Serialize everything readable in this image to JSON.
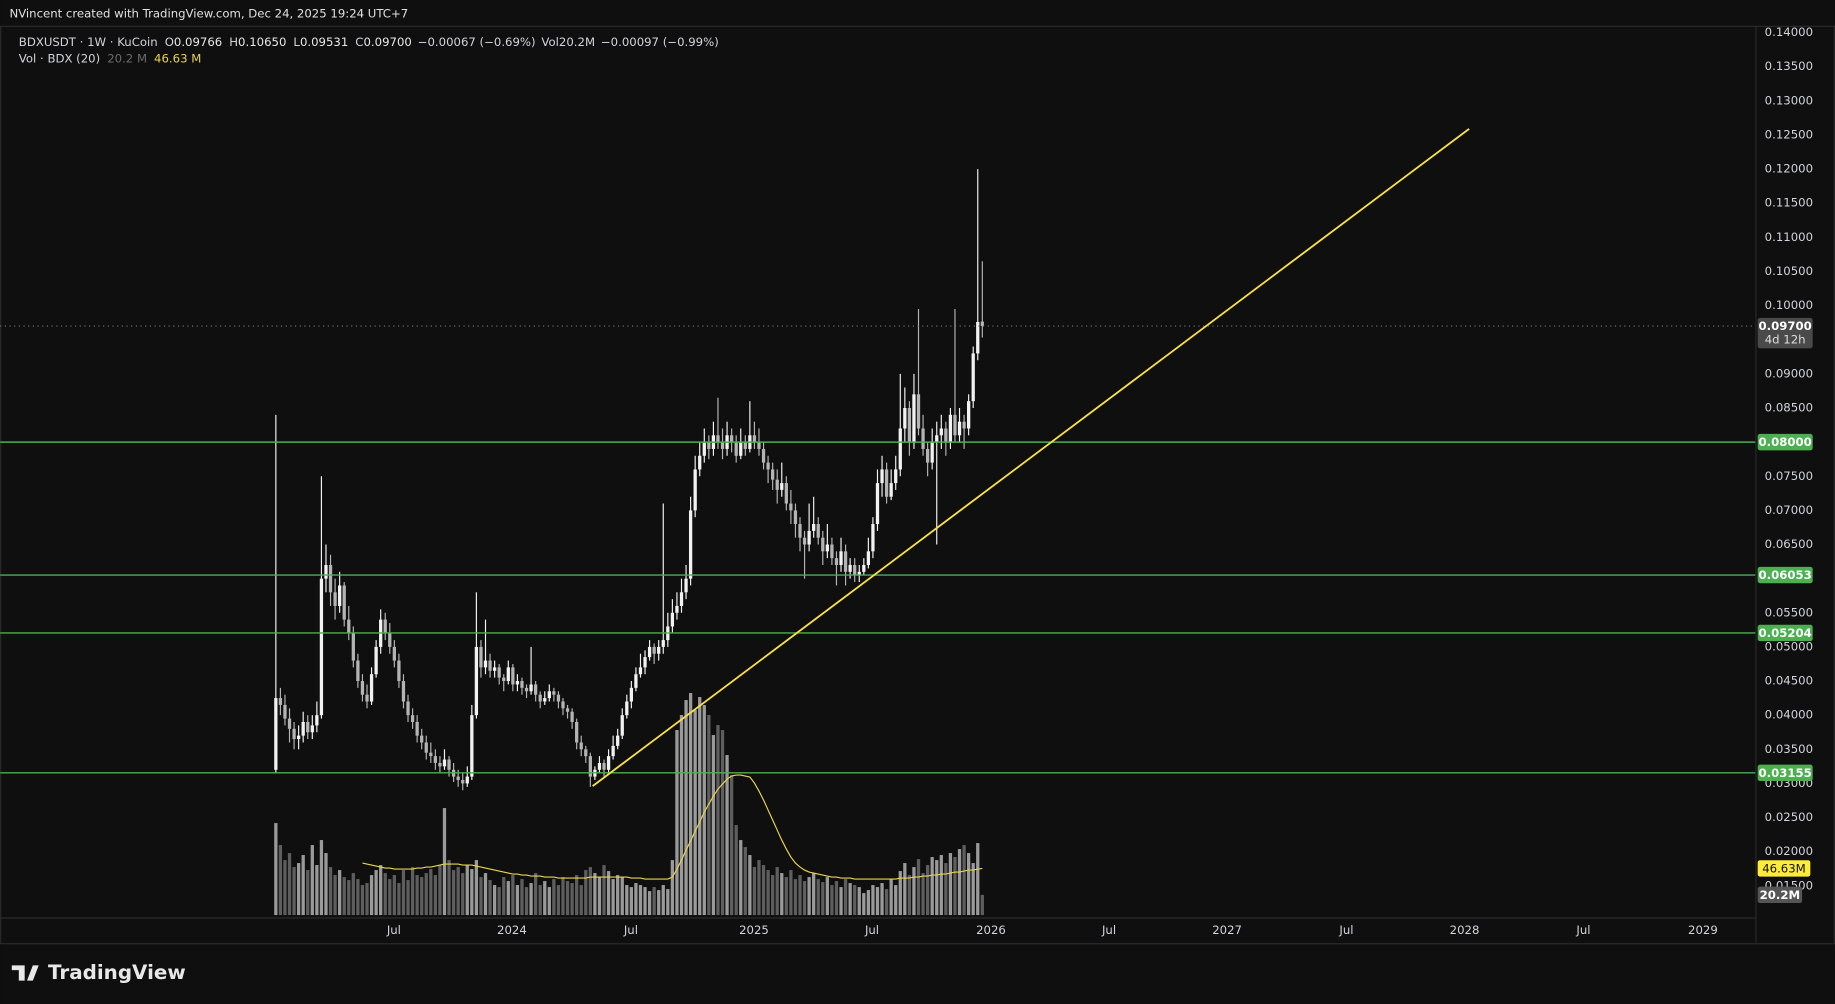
{
  "header": {
    "credit": "NVincent created with TradingView.com, Dec 24, 2025 19:24 UTC+7"
  },
  "footer": {
    "brand": "TradingView"
  },
  "chart_data": {
    "type": "candlestick",
    "legend": {
      "symbol": "BDXUSDT · 1W · KuCoin",
      "items": [
        {
          "k": "O",
          "v": "0.09766"
        },
        {
          "k": "H",
          "v": "0.10650"
        },
        {
          "k": "L",
          "v": "0.09531"
        },
        {
          "k": "C",
          "v": "0.09700"
        }
      ],
      "change": "−0.00067 (−0.69%)",
      "vol_k": "Vol",
      "vol_v": "20.2M",
      "change2": "−0.00097 (−0.99%)",
      "vol_name": "Vol · BDX (20)",
      "vol_value": "20.2 M",
      "vol_ma_value": "46.63 M"
    },
    "up_color": "#f2f2f2",
    "down_color": "#b4b4b4",
    "vol_up_color": "#9a9a9a",
    "vol_down_color": "#5e5e5e",
    "ma_color": "#e8d44d",
    "level_color": "#4caf50",
    "trend_color": "#f5e04a",
    "grid": false,
    "xlim": [
      -60.5,
      324.6
    ],
    "ylim": [
      0.0066,
      0.141
    ],
    "xticks": [
      {
        "value": 25.9,
        "label": "Jul"
      },
      {
        "value": 51.8,
        "label": "2024"
      },
      {
        "value": 77.9,
        "label": "Jul"
      },
      {
        "value": 104.9,
        "label": "2025"
      },
      {
        "value": 130.8,
        "label": "Jul"
      },
      {
        "value": 156.9,
        "label": "2026"
      },
      {
        "value": 182.8,
        "label": "Jul"
      },
      {
        "value": 208.7,
        "label": "2027"
      },
      {
        "value": 234.9,
        "label": "Jul"
      },
      {
        "value": 260.8,
        "label": "2028"
      },
      {
        "value": 286.9,
        "label": "Jul"
      },
      {
        "value": 313.1,
        "label": "2029"
      }
    ],
    "yticks": [
      {
        "value": 0.14,
        "label": "0.14000"
      },
      {
        "value": 0.135,
        "label": "0.13500"
      },
      {
        "value": 0.13,
        "label": "0.13000"
      },
      {
        "value": 0.125,
        "label": "0.12500"
      },
      {
        "value": 0.12,
        "label": "0.12000"
      },
      {
        "value": 0.115,
        "label": "0.11500"
      },
      {
        "value": 0.11,
        "label": "0.11000"
      },
      {
        "value": 0.105,
        "label": "0.10500"
      },
      {
        "value": 0.1,
        "label": "0.10000"
      },
      {
        "value": 0.095,
        "label": "0.09500"
      },
      {
        "value": 0.09,
        "label": "0.09000"
      },
      {
        "value": 0.085,
        "label": "0.08500"
      },
      {
        "value": 0.08,
        "label": "0.08000"
      },
      {
        "value": 0.075,
        "label": "0.07500"
      },
      {
        "value": 0.07,
        "label": "0.07000"
      },
      {
        "value": 0.065,
        "label": "0.06500"
      },
      {
        "value": 0.06,
        "label": "0.06000"
      },
      {
        "value": 0.055,
        "label": "0.05500"
      },
      {
        "value": 0.05,
        "label": "0.05000"
      },
      {
        "value": 0.045,
        "label": "0.04500"
      },
      {
        "value": 0.04,
        "label": "0.04000"
      },
      {
        "value": 0.035,
        "label": "0.03500"
      },
      {
        "value": 0.03,
        "label": "0.03000"
      },
      {
        "value": 0.025,
        "label": "0.02500"
      },
      {
        "value": 0.02,
        "label": "0.02000"
      },
      {
        "value": 0.015,
        "label": "0.01500"
      }
    ],
    "levels": [
      {
        "value": 0.08,
        "label": "0.08000"
      },
      {
        "value": 0.06053,
        "label": "0.06053"
      },
      {
        "value": 0.05204,
        "label": "0.05204"
      },
      {
        "value": 0.03155,
        "label": "0.03155"
      }
    ],
    "last_price": {
      "value": 0.097,
      "label": "0.09700",
      "countdown": "4d 12h"
    },
    "vol_labels": {
      "ma": "46.63M",
      "vol": "20.2M"
    },
    "trendline": {
      "x": [
        69.5,
        261.8
      ],
      "y": [
        0.0296,
        0.1259
      ]
    },
    "ohlc": [
      [
        0.032,
        0.084,
        0.0315,
        0.0425
      ],
      [
        0.0425,
        0.044,
        0.04,
        0.0415
      ],
      [
        0.0415,
        0.043,
        0.0385,
        0.0395
      ],
      [
        0.0395,
        0.041,
        0.036,
        0.038
      ],
      [
        0.038,
        0.039,
        0.035,
        0.0365
      ],
      [
        0.0365,
        0.0385,
        0.035,
        0.037
      ],
      [
        0.037,
        0.0405,
        0.036,
        0.039
      ],
      [
        0.039,
        0.04,
        0.0365,
        0.0375
      ],
      [
        0.0375,
        0.04,
        0.0365,
        0.0385
      ],
      [
        0.0385,
        0.042,
        0.0375,
        0.04
      ],
      [
        0.04,
        0.075,
        0.0395,
        0.06
      ],
      [
        0.06,
        0.065,
        0.058,
        0.062
      ],
      [
        0.062,
        0.0635,
        0.056,
        0.058
      ],
      [
        0.058,
        0.06,
        0.054,
        0.056
      ],
      [
        0.056,
        0.061,
        0.055,
        0.059
      ],
      [
        0.059,
        0.0595,
        0.053,
        0.054
      ],
      [
        0.054,
        0.056,
        0.051,
        0.052
      ],
      [
        0.052,
        0.053,
        0.047,
        0.048
      ],
      [
        0.048,
        0.049,
        0.044,
        0.045
      ],
      [
        0.045,
        0.046,
        0.042,
        0.043
      ],
      [
        0.043,
        0.0445,
        0.041,
        0.042
      ],
      [
        0.042,
        0.047,
        0.0415,
        0.046
      ],
      [
        0.046,
        0.051,
        0.0455,
        0.05
      ],
      [
        0.05,
        0.0555,
        0.049,
        0.054
      ],
      [
        0.054,
        0.055,
        0.051,
        0.052
      ],
      [
        0.052,
        0.0535,
        0.049,
        0.05
      ],
      [
        0.05,
        0.051,
        0.047,
        0.048
      ],
      [
        0.048,
        0.049,
        0.044,
        0.045
      ],
      [
        0.045,
        0.046,
        0.041,
        0.042
      ],
      [
        0.042,
        0.043,
        0.039,
        0.04
      ],
      [
        0.04,
        0.041,
        0.038,
        0.039
      ],
      [
        0.039,
        0.04,
        0.036,
        0.037
      ],
      [
        0.037,
        0.038,
        0.035,
        0.036
      ],
      [
        0.036,
        0.037,
        0.0335,
        0.0345
      ],
      [
        0.0345,
        0.036,
        0.033,
        0.034
      ],
      [
        0.034,
        0.035,
        0.032,
        0.033
      ],
      [
        0.033,
        0.034,
        0.0315,
        0.0325
      ],
      [
        0.0325,
        0.035,
        0.032,
        0.0335
      ],
      [
        0.0335,
        0.034,
        0.031,
        0.032
      ],
      [
        0.032,
        0.033,
        0.0302,
        0.031
      ],
      [
        0.031,
        0.032,
        0.0295,
        0.0305
      ],
      [
        0.0305,
        0.0315,
        0.029,
        0.03
      ],
      [
        0.03,
        0.0325,
        0.0295,
        0.031
      ],
      [
        0.031,
        0.0415,
        0.0305,
        0.04
      ],
      [
        0.04,
        0.058,
        0.0395,
        0.05
      ],
      [
        0.05,
        0.051,
        0.0455,
        0.047
      ],
      [
        0.047,
        0.054,
        0.046,
        0.048
      ],
      [
        0.048,
        0.049,
        0.0455,
        0.0465
      ],
      [
        0.0465,
        0.048,
        0.0455,
        0.047
      ],
      [
        0.047,
        0.0475,
        0.0445,
        0.0455
      ],
      [
        0.0455,
        0.046,
        0.0435,
        0.045
      ],
      [
        0.045,
        0.048,
        0.0445,
        0.047
      ],
      [
        0.047,
        0.0475,
        0.0435,
        0.0445
      ],
      [
        0.0445,
        0.046,
        0.0435,
        0.045
      ],
      [
        0.045,
        0.0455,
        0.043,
        0.044
      ],
      [
        0.044,
        0.0445,
        0.0425,
        0.0435
      ],
      [
        0.0435,
        0.05,
        0.043,
        0.0445
      ],
      [
        0.0445,
        0.045,
        0.042,
        0.043
      ],
      [
        0.043,
        0.0435,
        0.041,
        0.042
      ],
      [
        0.042,
        0.0435,
        0.0415,
        0.0425
      ],
      [
        0.0425,
        0.0445,
        0.042,
        0.0435
      ],
      [
        0.0435,
        0.044,
        0.042,
        0.043
      ],
      [
        0.043,
        0.0435,
        0.041,
        0.042
      ],
      [
        0.042,
        0.0425,
        0.04,
        0.041
      ],
      [
        0.041,
        0.0415,
        0.0395,
        0.0405
      ],
      [
        0.0405,
        0.041,
        0.038,
        0.039
      ],
      [
        0.039,
        0.0395,
        0.035,
        0.036
      ],
      [
        0.036,
        0.037,
        0.034,
        0.035
      ],
      [
        0.035,
        0.0355,
        0.033,
        0.034
      ],
      [
        0.034,
        0.0345,
        0.0295,
        0.031
      ],
      [
        0.031,
        0.0325,
        0.0305,
        0.032
      ],
      [
        0.032,
        0.034,
        0.0315,
        0.033
      ],
      [
        0.033,
        0.0335,
        0.031,
        0.032
      ],
      [
        0.032,
        0.035,
        0.0315,
        0.034
      ],
      [
        0.034,
        0.037,
        0.0335,
        0.0355
      ],
      [
        0.0355,
        0.038,
        0.035,
        0.037
      ],
      [
        0.037,
        0.041,
        0.0365,
        0.04
      ],
      [
        0.04,
        0.043,
        0.0395,
        0.042
      ],
      [
        0.042,
        0.045,
        0.041,
        0.044
      ],
      [
        0.044,
        0.047,
        0.0435,
        0.046
      ],
      [
        0.046,
        0.049,
        0.0455,
        0.047
      ],
      [
        0.047,
        0.0495,
        0.046,
        0.0485
      ],
      [
        0.0485,
        0.051,
        0.048,
        0.05
      ],
      [
        0.05,
        0.0505,
        0.0475,
        0.049
      ],
      [
        0.049,
        0.051,
        0.048,
        0.05
      ],
      [
        0.05,
        0.071,
        0.049,
        0.051
      ],
      [
        0.051,
        0.055,
        0.05,
        0.053
      ],
      [
        0.053,
        0.057,
        0.052,
        0.055
      ],
      [
        0.055,
        0.058,
        0.054,
        0.056
      ],
      [
        0.056,
        0.06,
        0.055,
        0.058
      ],
      [
        0.058,
        0.062,
        0.057,
        0.06
      ],
      [
        0.06,
        0.072,
        0.059,
        0.07
      ],
      [
        0.07,
        0.078,
        0.069,
        0.076
      ],
      [
        0.076,
        0.08,
        0.075,
        0.078
      ],
      [
        0.078,
        0.082,
        0.077,
        0.08
      ],
      [
        0.08,
        0.081,
        0.0775,
        0.079
      ],
      [
        0.079,
        0.083,
        0.078,
        0.081
      ],
      [
        0.081,
        0.0865,
        0.079,
        0.08
      ],
      [
        0.08,
        0.082,
        0.0775,
        0.079
      ],
      [
        0.079,
        0.083,
        0.078,
        0.081
      ],
      [
        0.081,
        0.082,
        0.0785,
        0.08
      ],
      [
        0.08,
        0.081,
        0.077,
        0.078
      ],
      [
        0.078,
        0.082,
        0.0775,
        0.08
      ],
      [
        0.08,
        0.081,
        0.078,
        0.079
      ],
      [
        0.079,
        0.086,
        0.0785,
        0.081
      ],
      [
        0.081,
        0.083,
        0.079,
        0.08
      ],
      [
        0.08,
        0.082,
        0.078,
        0.079
      ],
      [
        0.079,
        0.08,
        0.076,
        0.077
      ],
      [
        0.077,
        0.078,
        0.074,
        0.076
      ],
      [
        0.076,
        0.077,
        0.073,
        0.0745
      ],
      [
        0.0745,
        0.076,
        0.071,
        0.073
      ],
      [
        0.073,
        0.077,
        0.072,
        0.074
      ],
      [
        0.074,
        0.075,
        0.07,
        0.071
      ],
      [
        0.071,
        0.073,
        0.068,
        0.07
      ],
      [
        0.07,
        0.071,
        0.066,
        0.068
      ],
      [
        0.068,
        0.069,
        0.064,
        0.066
      ],
      [
        0.066,
        0.067,
        0.06,
        0.065
      ],
      [
        0.065,
        0.071,
        0.064,
        0.067
      ],
      [
        0.067,
        0.072,
        0.066,
        0.068
      ],
      [
        0.068,
        0.069,
        0.065,
        0.066
      ],
      [
        0.066,
        0.067,
        0.062,
        0.064
      ],
      [
        0.064,
        0.068,
        0.063,
        0.065
      ],
      [
        0.065,
        0.066,
        0.062,
        0.063
      ],
      [
        0.063,
        0.064,
        0.059,
        0.062
      ],
      [
        0.062,
        0.066,
        0.061,
        0.064
      ],
      [
        0.064,
        0.065,
        0.059,
        0.061
      ],
      [
        0.061,
        0.063,
        0.06,
        0.062
      ],
      [
        0.062,
        0.063,
        0.0595,
        0.0605
      ],
      [
        0.0605,
        0.062,
        0.0595,
        0.061
      ],
      [
        0.061,
        0.063,
        0.0605,
        0.062
      ],
      [
        0.062,
        0.066,
        0.0615,
        0.064
      ],
      [
        0.064,
        0.069,
        0.063,
        0.068
      ],
      [
        0.068,
        0.076,
        0.067,
        0.074
      ],
      [
        0.074,
        0.078,
        0.072,
        0.076
      ],
      [
        0.076,
        0.077,
        0.071,
        0.072
      ],
      [
        0.072,
        0.076,
        0.0715,
        0.074
      ],
      [
        0.074,
        0.078,
        0.073,
        0.076
      ],
      [
        0.076,
        0.09,
        0.075,
        0.082
      ],
      [
        0.082,
        0.088,
        0.08,
        0.085
      ],
      [
        0.085,
        0.086,
        0.078,
        0.08
      ],
      [
        0.08,
        0.09,
        0.079,
        0.087
      ],
      [
        0.087,
        0.0995,
        0.081,
        0.082
      ],
      [
        0.082,
        0.084,
        0.078,
        0.079
      ],
      [
        0.079,
        0.08,
        0.075,
        0.077
      ],
      [
        0.077,
        0.082,
        0.076,
        0.08
      ],
      [
        0.08,
        0.083,
        0.065,
        0.081
      ],
      [
        0.081,
        0.084,
        0.079,
        0.082
      ],
      [
        0.082,
        0.083,
        0.078,
        0.08
      ],
      [
        0.08,
        0.085,
        0.079,
        0.084
      ],
      [
        0.084,
        0.0995,
        0.08,
        0.081
      ],
      [
        0.081,
        0.085,
        0.08,
        0.083
      ],
      [
        0.083,
        0.084,
        0.079,
        0.082
      ],
      [
        0.082,
        0.087,
        0.081,
        0.086
      ],
      [
        0.086,
        0.094,
        0.085,
        0.093
      ],
      [
        0.093,
        0.12,
        0.092,
        0.0976
      ],
      [
        0.09766,
        0.1065,
        0.09531,
        0.097
      ]
    ],
    "volume": [
      92,
      70,
      55,
      62,
      48,
      52,
      60,
      45,
      70,
      50,
      75,
      62,
      48,
      40,
      45,
      38,
      35,
      42,
      36,
      30,
      32,
      40,
      45,
      50,
      42,
      36,
      40,
      32,
      45,
      35,
      48,
      40,
      38,
      42,
      46,
      40,
      50,
      107,
      55,
      45,
      48,
      42,
      50,
      46,
      55,
      38,
      42,
      35,
      30,
      28,
      38,
      34,
      40,
      30,
      36,
      28,
      32,
      42,
      30,
      34,
      28,
      36,
      30,
      38,
      34,
      32,
      40,
      30,
      45,
      48,
      42,
      38,
      50,
      44,
      36,
      40,
      38,
      30,
      28,
      32,
      30,
      28,
      24,
      28,
      25,
      30,
      26,
      55,
      185,
      200,
      215,
      222,
      205,
      218,
      210,
      200,
      180,
      190,
      185,
      160,
      140,
      90,
      75,
      68,
      60,
      48,
      55,
      50,
      45,
      40,
      48,
      42,
      38,
      45,
      36,
      40,
      34,
      38,
      42,
      36,
      33,
      38,
      30,
      34,
      28,
      36,
      32,
      30,
      28,
      22,
      25,
      30,
      28,
      32,
      26,
      36,
      30,
      44,
      52,
      40,
      48,
      56,
      42,
      50,
      58,
      55,
      60,
      52,
      62,
      58,
      66,
      70,
      62,
      52,
      72,
      20.2
    ],
    "volume_ma": [
      null,
      null,
      null,
      null,
      null,
      null,
      null,
      null,
      null,
      null,
      null,
      null,
      null,
      null,
      null,
      null,
      null,
      null,
      null,
      52,
      51,
      50,
      49,
      48,
      47,
      47,
      46,
      46,
      46,
      46,
      46,
      47,
      47,
      48,
      48,
      49,
      50,
      51,
      51,
      51,
      51,
      50,
      50,
      50,
      49,
      48,
      47,
      46,
      45,
      44,
      43,
      42,
      41,
      41,
      40,
      40,
      39,
      39,
      39,
      38,
      38,
      38,
      37,
      37,
      37,
      37,
      37,
      37,
      37,
      38,
      38,
      38,
      38,
      38,
      38,
      38,
      38,
      38,
      37,
      37,
      37,
      36,
      36,
      36,
      36,
      36,
      36,
      38,
      46,
      55,
      65,
      74,
      84,
      93,
      103,
      111,
      119,
      126,
      131,
      136,
      139,
      140,
      140,
      139,
      138,
      132,
      124,
      115,
      105,
      95,
      85,
      75,
      66,
      58,
      52,
      48,
      45,
      43,
      42,
      41,
      40,
      39,
      38,
      38,
      37,
      37,
      37,
      36,
      36,
      36,
      36,
      36,
      36,
      36,
      36,
      36,
      36,
      37,
      37,
      37,
      38,
      38,
      39,
      39,
      40,
      40,
      41,
      41,
      42,
      43,
      43,
      44,
      45,
      45,
      46,
      46.63
    ]
  }
}
